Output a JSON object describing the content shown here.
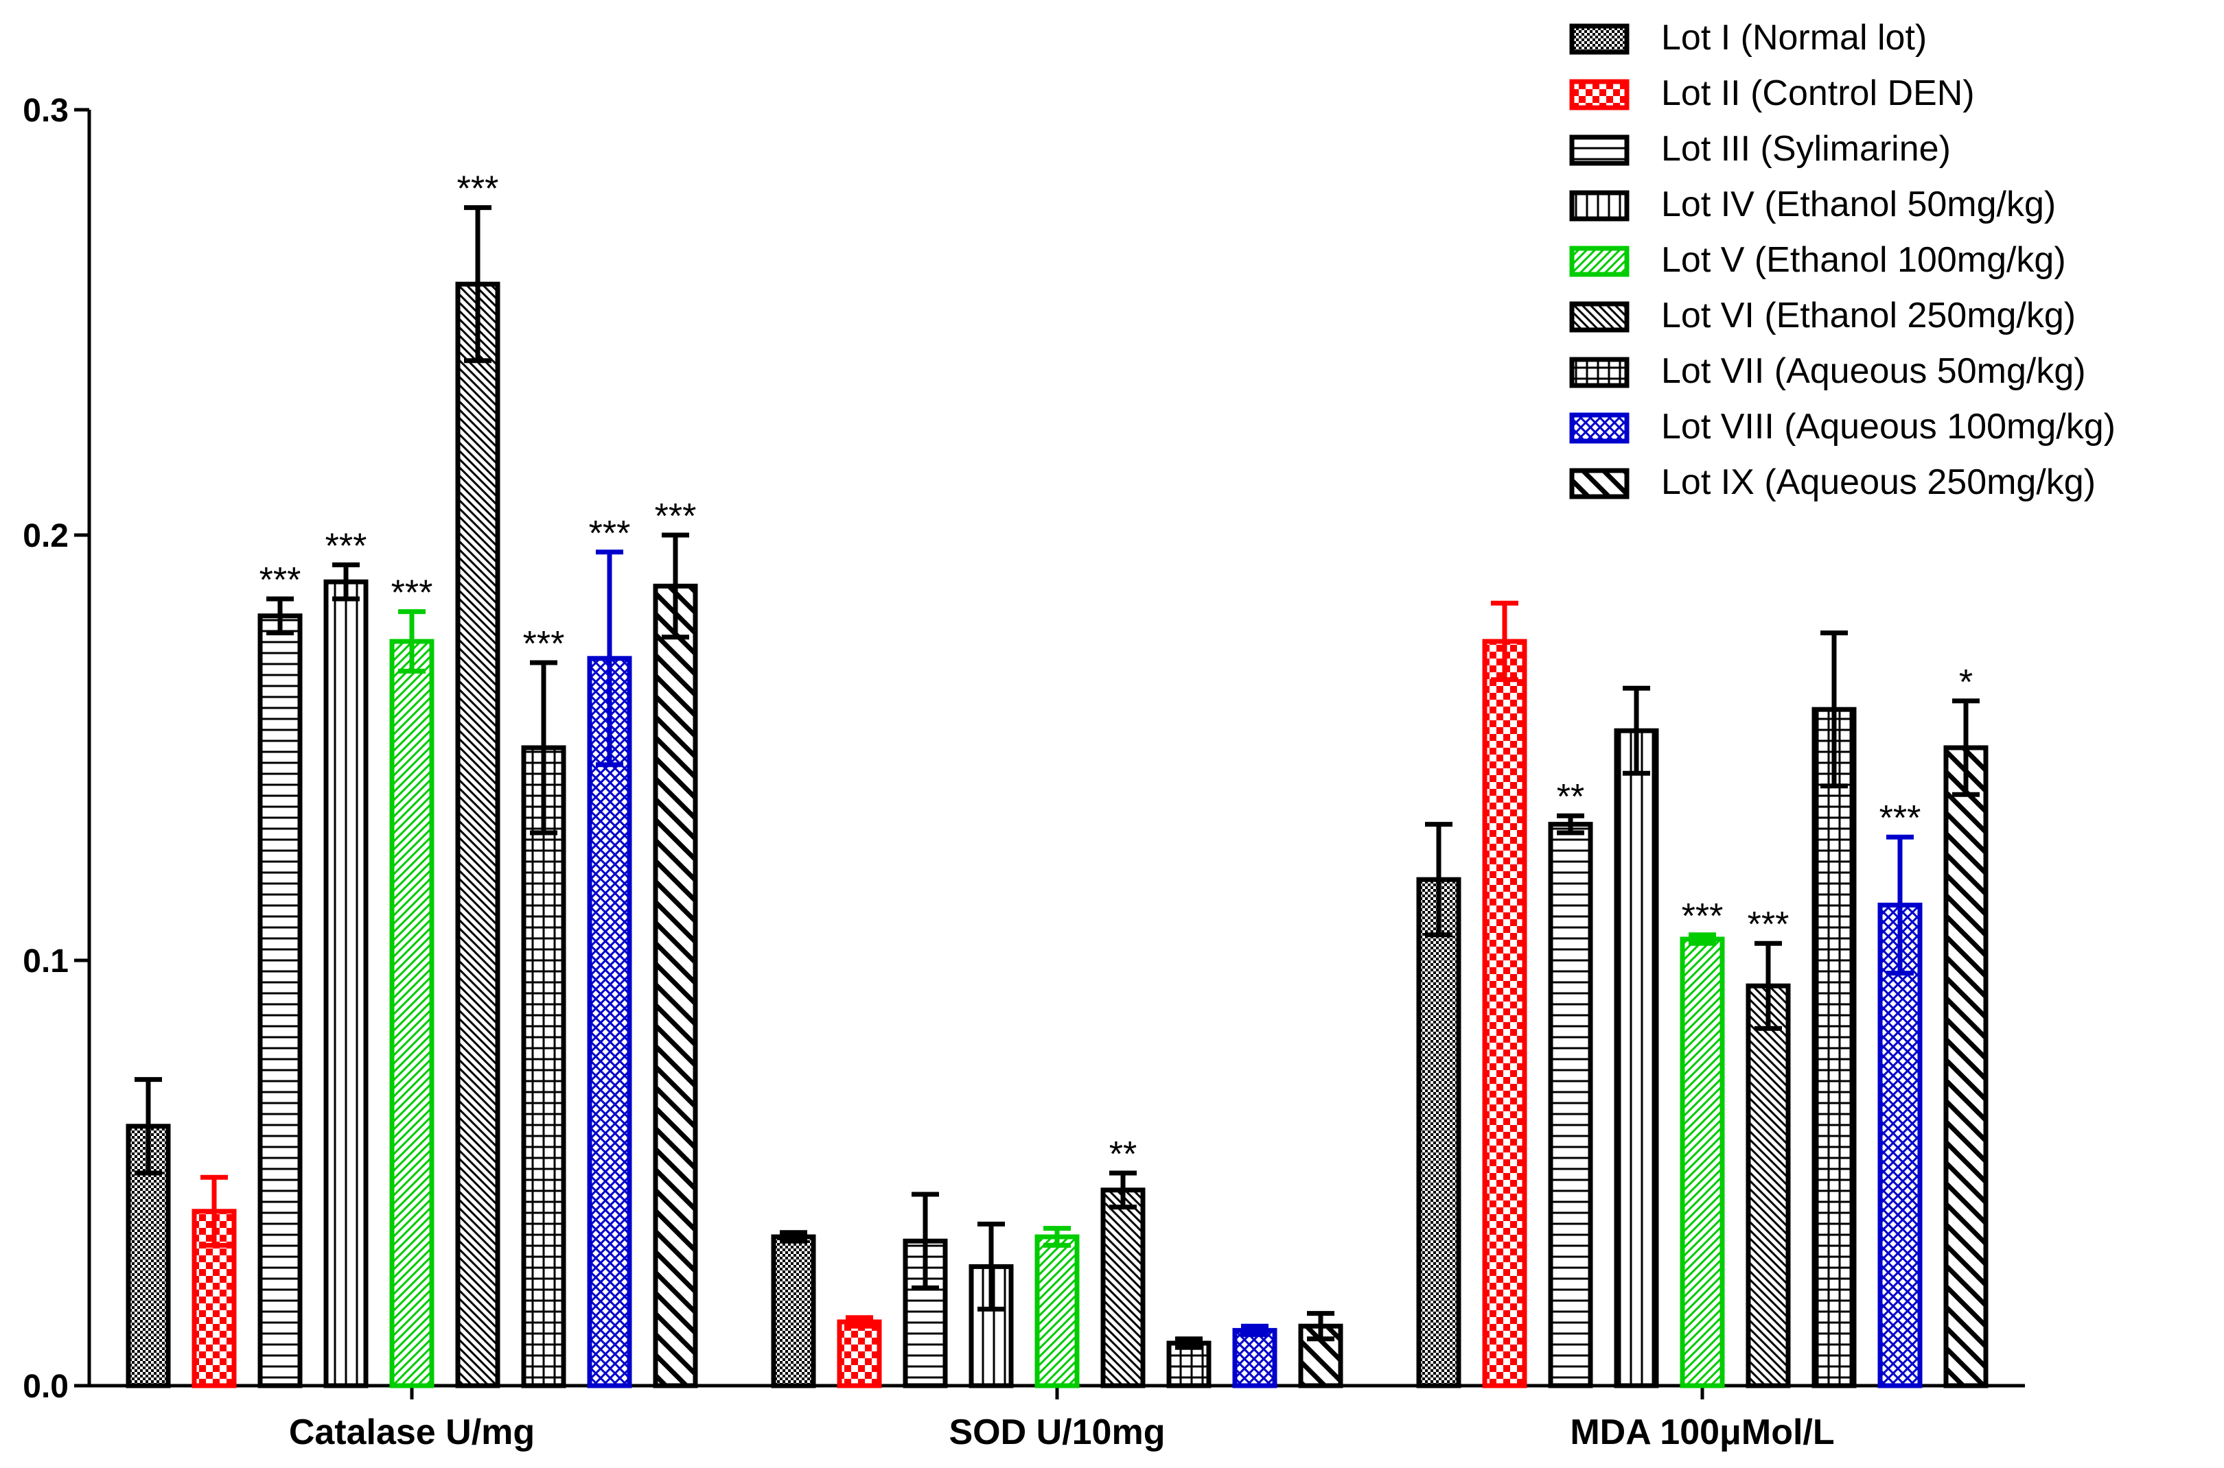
{
  "chart_data": {
    "type": "bar",
    "title": "",
    "xlabel": "",
    "ylabel": "",
    "ylim": [
      0,
      0.3
    ],
    "yticks": [
      "0.0",
      "0.1",
      "0.2",
      "0.3"
    ],
    "categories": [
      "Catalase U/mg",
      "SOD U/10mg",
      "MDA 100μMol/L"
    ],
    "series": [
      {
        "name": "Lot I (Normal lot)",
        "color": "#000000",
        "pattern": "dots",
        "values": [
          0.061,
          0.035,
          0.119
        ],
        "errors": [
          0.011,
          0.001,
          0.013
        ],
        "stars": [
          "",
          "",
          ""
        ]
      },
      {
        "name": "Lot II (Control DEN)",
        "color": "#ff0000",
        "pattern": "checker",
        "values": [
          0.041,
          0.015,
          0.175
        ],
        "errors": [
          0.008,
          0.001,
          0.009
        ],
        "stars": [
          "",
          "",
          ""
        ]
      },
      {
        "name": "Lot III (Sylimarine)",
        "color": "#000000",
        "pattern": "hlines",
        "values": [
          0.181,
          0.034,
          0.132
        ],
        "errors": [
          0.004,
          0.011,
          0.002
        ],
        "stars": [
          "***",
          "",
          "**"
        ]
      },
      {
        "name": "Lot IV (Ethanol 50mg/kg)",
        "color": "#000000",
        "pattern": "vlines",
        "values": [
          0.189,
          0.028,
          0.154
        ],
        "errors": [
          0.004,
          0.01,
          0.01
        ],
        "stars": [
          "***",
          "",
          ""
        ]
      },
      {
        "name": "Lot V (Ethanol 100mg/kg)",
        "color": "#00cc00",
        "pattern": "diag",
        "values": [
          0.175,
          0.035,
          0.105
        ],
        "errors": [
          0.007,
          0.002,
          0.001
        ],
        "stars": [
          "***",
          "",
          "***"
        ]
      },
      {
        "name": "Lot VI (Ethanol 250mg/kg)",
        "color": "#000000",
        "pattern": "diag-back",
        "values": [
          0.259,
          0.046,
          0.094
        ],
        "errors": [
          0.018,
          0.004,
          0.01
        ],
        "stars": [
          "***",
          "**",
          "***"
        ]
      },
      {
        "name": "Lot VII (Aqueous 50mg/kg)",
        "color": "#000000",
        "pattern": "grid",
        "values": [
          0.15,
          0.01,
          0.159
        ],
        "errors": [
          0.02,
          0.001,
          0.018
        ],
        "stars": [
          "***",
          "",
          ""
        ]
      },
      {
        "name": "Lot VIII (Aqueous 100mg/kg)",
        "color": "#0000cc",
        "pattern": "crosshatch",
        "values": [
          0.171,
          0.013,
          0.113
        ],
        "errors": [
          0.025,
          0.001,
          0.016
        ],
        "stars": [
          "***",
          "",
          "***"
        ]
      },
      {
        "name": "Lot IX (Aqueous 250mg/kg)",
        "color": "#000000",
        "pattern": "wide-diag",
        "values": [
          0.188,
          0.014,
          0.15
        ],
        "errors": [
          0.012,
          0.003,
          0.011
        ],
        "stars": [
          "***",
          "",
          "*"
        ]
      }
    ],
    "legend": "top-right",
    "grid": false
  }
}
